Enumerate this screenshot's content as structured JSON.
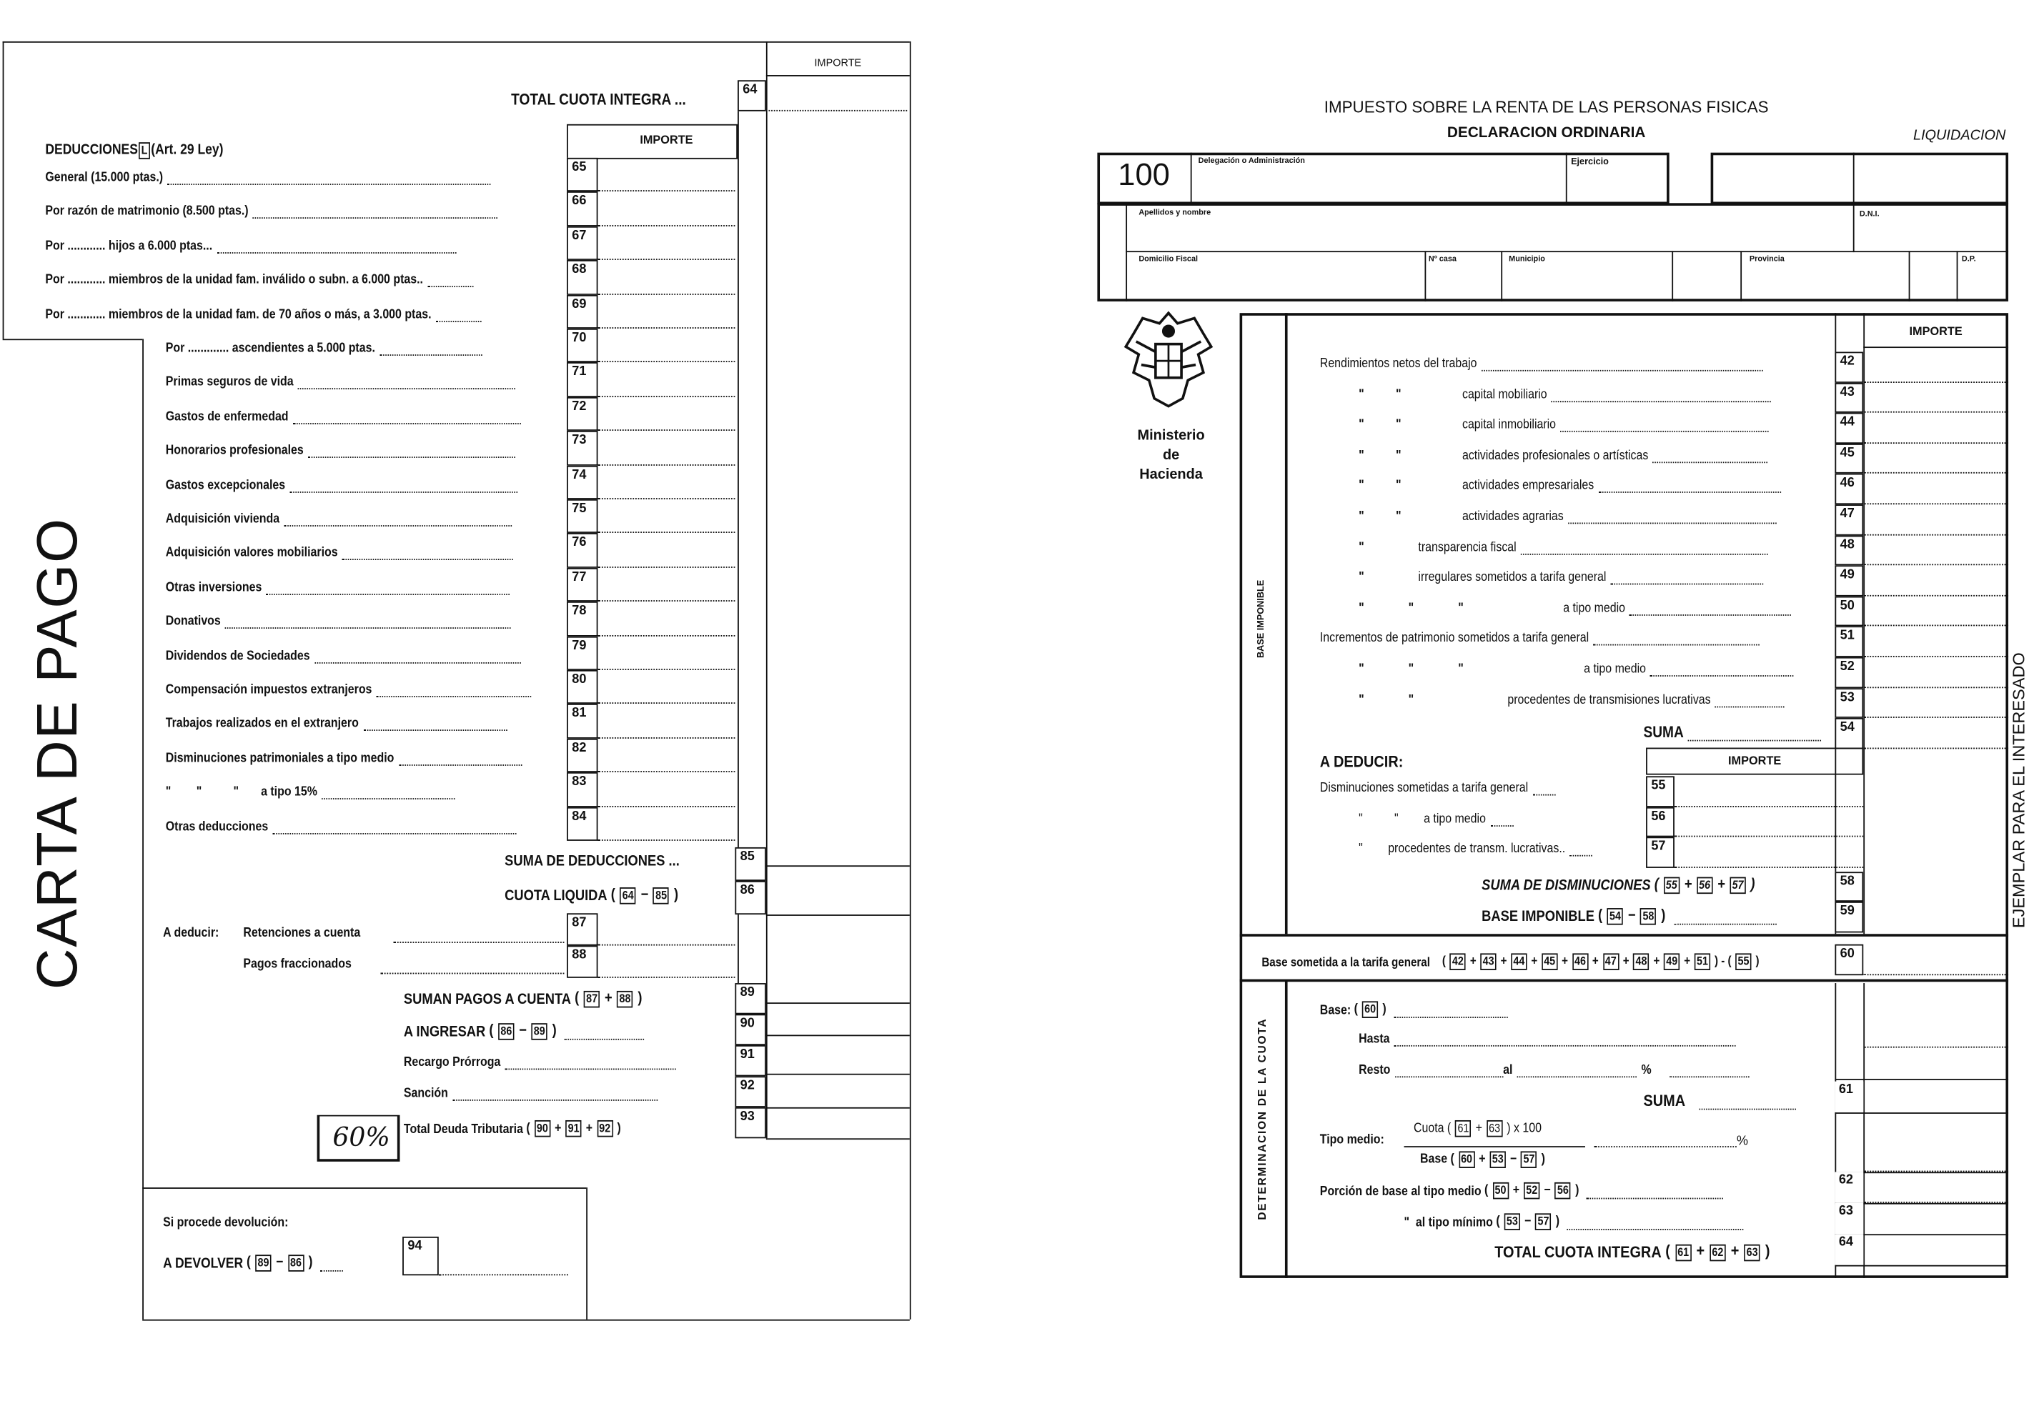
{
  "left": {
    "side_title": "CARTA DE PAGO",
    "importe_header": "IMPORTE",
    "total_cuota_integra": {
      "label": "TOTAL CUOTA INTEGRA ...",
      "num": "64"
    },
    "deducciones_title": "DEDUCCIONES",
    "deducciones_letter": "L",
    "deducciones_ref": "(Art. 29 Ley)",
    "inner_importe_header": "IMPORTE",
    "deductions": [
      {
        "num": "65",
        "label": "General (15.000 ptas.)"
      },
      {
        "num": "66",
        "label": "Por razón de matrimonio (8.500 ptas.)"
      },
      {
        "num": "67",
        "label": "Por ............ hijos a 6.000 ptas..."
      },
      {
        "num": "68",
        "label": "Por ............ miembros de la unidad fam. inválido o subn. a 6.000 ptas.."
      },
      {
        "num": "69",
        "label": "Por ............ miembros de la unidad fam. de 70 años o más, a 3.000 ptas."
      },
      {
        "num": "70",
        "label": "Por ............. ascendientes a 5.000 ptas."
      },
      {
        "num": "71",
        "label": "Primas seguros de vida"
      },
      {
        "num": "72",
        "label": "Gastos de enfermedad"
      },
      {
        "num": "73",
        "label": "Honorarios profesionales"
      },
      {
        "num": "74",
        "label": "Gastos excepcionales"
      },
      {
        "num": "75",
        "label": "Adquisición vivienda"
      },
      {
        "num": "76",
        "label": "Adquisición valores mobiliarios"
      },
      {
        "num": "77",
        "label": "Otras inversiones"
      },
      {
        "num": "78",
        "label": "Donativos"
      },
      {
        "num": "79",
        "label": "Dividendos de Sociedades"
      },
      {
        "num": "80",
        "label": "Compensación impuestos extranjeros"
      },
      {
        "num": "81",
        "label": "Trabajos realizados en el extranjero"
      },
      {
        "num": "82",
        "label": "Disminuciones patrimoniales a tipo medio"
      },
      {
        "num": "83",
        "label": "\"        \"          \"       a tipo 15%"
      },
      {
        "num": "84",
        "label": "Otras deducciones"
      }
    ],
    "suma_deducciones": {
      "label": "SUMA DE DEDUCCIONES ...",
      "num": "85"
    },
    "cuota_liquida": {
      "label": "CUOTA LIQUIDA",
      "num": "86",
      "formula": [
        "(",
        {
          "box": "64"
        },
        "−",
        {
          "box": "85"
        },
        ")"
      ]
    },
    "a_deducir_label": "A deducir:",
    "retenciones": {
      "label": "Retenciones a cuenta",
      "num": "87"
    },
    "pagos_fraccionados": {
      "label": "Pagos fraccionados",
      "num": "88"
    },
    "suman_pagos": {
      "label": "SUMAN PAGOS A CUENTA",
      "num": "89",
      "formula": [
        "(",
        {
          "box": "87"
        },
        "+",
        {
          "box": "88"
        },
        ")"
      ]
    },
    "a_ingresar": {
      "label": "A INGRESAR",
      "num": "90",
      "formula": [
        "(",
        {
          "box": "86"
        },
        "−",
        {
          "box": "89"
        },
        ")"
      ]
    },
    "recargo": {
      "label": "Recargo Prórroga",
      "num": "91"
    },
    "sancion": {
      "label": "Sanción",
      "num": "92"
    },
    "handwritten_note": "60%",
    "total_deuda": {
      "label": "Total Deuda Tributaria",
      "num": "93",
      "formula": [
        "(",
        {
          "box": "90"
        },
        "+",
        {
          "box": "91"
        },
        "+",
        {
          "box": "92"
        },
        ")"
      ]
    },
    "devolucion_title": "Si procede devolución:",
    "a_devolver": {
      "label": "A DEVOLVER",
      "num": "94",
      "formula": [
        "(",
        {
          "box": "89"
        },
        "−",
        {
          "box": "86"
        },
        ")"
      ]
    }
  },
  "right": {
    "title": "IMPUESTO SOBRE LA RENTA DE LAS PERSONAS FISICAS",
    "subtitle": "DECLARACION ORDINARIA",
    "section": "LIQUIDACION",
    "model_number": "100",
    "header_fields": {
      "delegacion": "Delegación o Administración",
      "ejercicio": "Ejercicio",
      "apellidos": "Apellidos y nombre",
      "dni": "D.N.I.",
      "domicilio": "Domicilio Fiscal",
      "numero_casa": "Nº casa",
      "municipio": "Municipio",
      "provincia": "Provincia",
      "dp": "D.P."
    },
    "ministry": [
      "Ministerio",
      "de",
      "Hacienda"
    ],
    "side_label_base": "BASE IMPONIBLE",
    "side_label_cuota": "DETERMINACION DE LA CUOTA",
    "side_copy_label": "EJEMPLAR PARA EL INTERESADO",
    "importe_header": "IMPORTE",
    "base_rows": [
      {
        "num": "42",
        "ditto": "",
        "label": "Rendimientos netos del trabajo"
      },
      {
        "num": "43",
        "ditto": "\"          \"",
        "label": "capital mobiliario"
      },
      {
        "num": "44",
        "ditto": "\"          \"",
        "label": "capital inmobiliario"
      },
      {
        "num": "45",
        "ditto": "\"          \"",
        "label": "actividades profesionales o artísticas"
      },
      {
        "num": "46",
        "ditto": "\"          \"",
        "label": "actividades empresariales"
      },
      {
        "num": "47",
        "ditto": "\"          \"",
        "label": "actividades agrarias"
      },
      {
        "num": "48",
        "ditto": "\"",
        "label": "transparencia fiscal"
      },
      {
        "num": "49",
        "ditto": "\"",
        "label": "irregulares sometidos a tarifa general"
      },
      {
        "num": "50",
        "ditto": "\"              \"              \"",
        "label": "a tipo medio"
      },
      {
        "num": "51",
        "ditto": "",
        "label": "Incrementos de patrimonio sometidos a tarifa general"
      },
      {
        "num": "52",
        "ditto": "\"              \"              \"",
        "label": "a tipo medio"
      },
      {
        "num": "53",
        "ditto": "\"              \"",
        "label": "procedentes de transmisiones lucrativas"
      },
      {
        "num": "54",
        "ditto": "",
        "label": "SUMA"
      }
    ],
    "a_deducir_title": "A DEDUCIR:",
    "deducir_importe_header": "IMPORTE",
    "deducir_rows": [
      {
        "num": "55",
        "label": "Disminuciones sometidas a tarifa general"
      },
      {
        "num": "56",
        "label": "\"          \"        a tipo medio"
      },
      {
        "num": "57",
        "label": "\"        procedentes de transm. lucrativas.."
      }
    ],
    "suma_disminuciones": {
      "label": "SUMA DE DISMINUCIONES",
      "num": "58",
      "formula": [
        "(",
        {
          "box": "55"
        },
        "+",
        {
          "box": "56"
        },
        "+",
        {
          "box": "57"
        },
        ")"
      ]
    },
    "base_imponible": {
      "label": "BASE IMPONIBLE",
      "num": "59",
      "formula": [
        "(",
        {
          "box": "54"
        },
        "−",
        {
          "box": "58"
        },
        ")"
      ]
    },
    "base_sometida": {
      "label": "Base sometida a la tarifa general",
      "num": "60",
      "formula": [
        "(",
        {
          "box": "42"
        },
        "+",
        {
          "box": "43"
        },
        "+",
        {
          "box": "44"
        },
        "+",
        {
          "box": "45"
        },
        "+",
        {
          "box": "46"
        },
        "+",
        {
          "box": "47"
        },
        "+",
        {
          "box": "48"
        },
        "+",
        {
          "box": "49"
        },
        "+",
        {
          "box": "51"
        },
        ") - (",
        {
          "box": "55"
        },
        ")"
      ]
    },
    "cuota": {
      "base_label": "Base:",
      "base_formula": [
        "(",
        {
          "box": "60"
        },
        ")"
      ],
      "hasta_label": "Hasta",
      "resto_label": "Resto",
      "al_label": "al",
      "percent": "%",
      "suma_label": "SUMA",
      "suma_num": "61",
      "tipo_medio_label": "Tipo medio:",
      "tipo_numerator": [
        "Cuota (",
        {
          "box": "61"
        },
        "+",
        {
          "box": "63"
        },
        ") x 100"
      ],
      "tipo_denominator": [
        "Base (",
        {
          "box": "60"
        },
        "+",
        {
          "box": "53"
        },
        "−",
        {
          "box": "57"
        },
        ")"
      ],
      "porcion_medio": {
        "label": "Porción de base al tipo medio",
        "num": "62",
        "formula": [
          "(",
          {
            "box": "50"
          },
          "+",
          {
            "box": "52"
          },
          "−",
          {
            "box": "56"
          },
          ")"
        ]
      },
      "porcion_minimo": {
        "label": "\"  al tipo mínimo",
        "num": "63",
        "formula": [
          "(",
          {
            "box": "53"
          },
          "−",
          {
            "box": "57"
          },
          ")"
        ]
      },
      "total": {
        "label": "TOTAL CUOTA INTEGRA",
        "num": "64",
        "formula": [
          "(",
          {
            "box": "61"
          },
          "+",
          {
            "box": "62"
          },
          "+",
          {
            "box": "63"
          },
          ")"
        ]
      }
    }
  }
}
